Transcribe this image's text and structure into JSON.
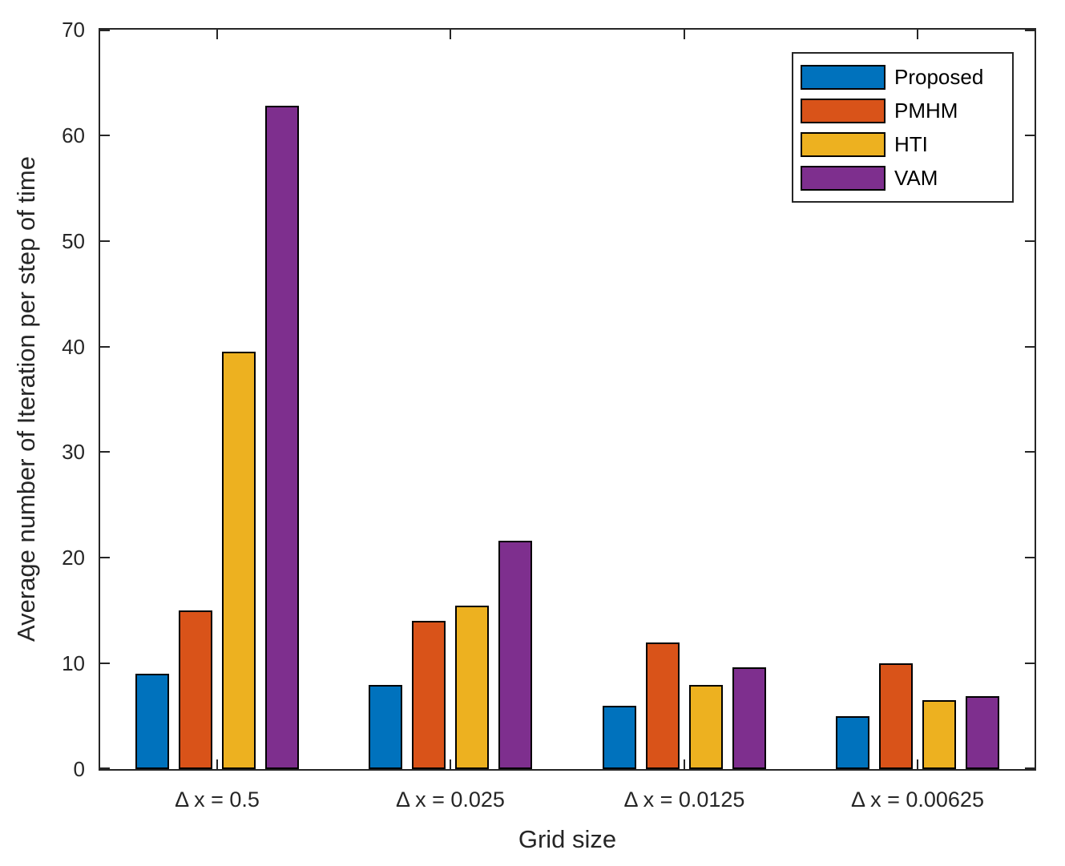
{
  "chart_data": {
    "type": "bar",
    "title": "",
    "xlabel": "Grid size",
    "ylabel": "Average number of Iteration per step of time",
    "categories": [
      "Δ x = 0.5",
      "Δ x = 0.025",
      "Δ x = 0.0125",
      "Δ x = 0.00625"
    ],
    "series": [
      {
        "name": "Proposed",
        "color": "#0072BD",
        "values": [
          9,
          8,
          6,
          5
        ]
      },
      {
        "name": "PMHM",
        "color": "#D95319",
        "values": [
          15,
          14,
          12,
          10
        ]
      },
      {
        "name": "HTI",
        "color": "#EDB120",
        "values": [
          39.5,
          15.5,
          8,
          6.5
        ]
      },
      {
        "name": "VAM",
        "color": "#7E2F8E",
        "values": [
          62.8,
          21.6,
          9.6,
          6.9
        ]
      }
    ],
    "ylim": [
      0,
      70
    ],
    "yticks": [
      0,
      10,
      20,
      30,
      40,
      50,
      60,
      70
    ],
    "legend_position": "top-right",
    "grid": false,
    "axis_color": "#262626",
    "bar_edge_color": "#000000",
    "background_color": "#ffffff"
  }
}
